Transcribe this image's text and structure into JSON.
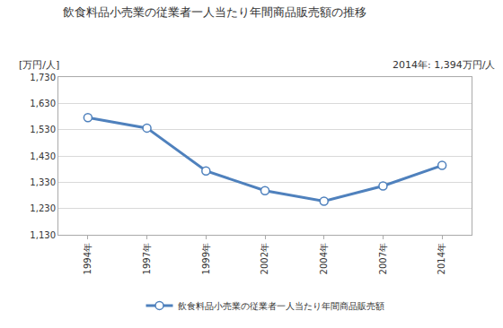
{
  "chart_data": {
    "type": "line",
    "title": "飲食料品小売業の従業者一人当たり年間商品販売額の推移",
    "y_label": "[万円/人]",
    "annotations": [
      "2014年: 1,394万円/人"
    ],
    "categories": [
      "1994年",
      "1997年",
      "1999年",
      "2002年",
      "2004年",
      "2007年",
      "2014年"
    ],
    "series": [
      {
        "name": "飲食料品小売業の従業者一人当たり年間商品販売額",
        "color": "#4f81bd",
        "values": [
          1576,
          1536,
          1373,
          1298,
          1258,
          1316,
          1394
        ]
      }
    ],
    "ylim": [
      1130,
      1730
    ],
    "yticks": [
      {
        "value": 1130,
        "label": "1,130"
      },
      {
        "value": 1230,
        "label": "1,230"
      },
      {
        "value": 1330,
        "label": "1,330"
      },
      {
        "value": 1430,
        "label": "1,430"
      },
      {
        "value": 1530,
        "label": "1,530"
      },
      {
        "value": 1630,
        "label": "1,630"
      },
      {
        "value": 1730,
        "label": "1,730"
      }
    ],
    "grid": true,
    "legend": "bottom",
    "marker": "circle"
  }
}
